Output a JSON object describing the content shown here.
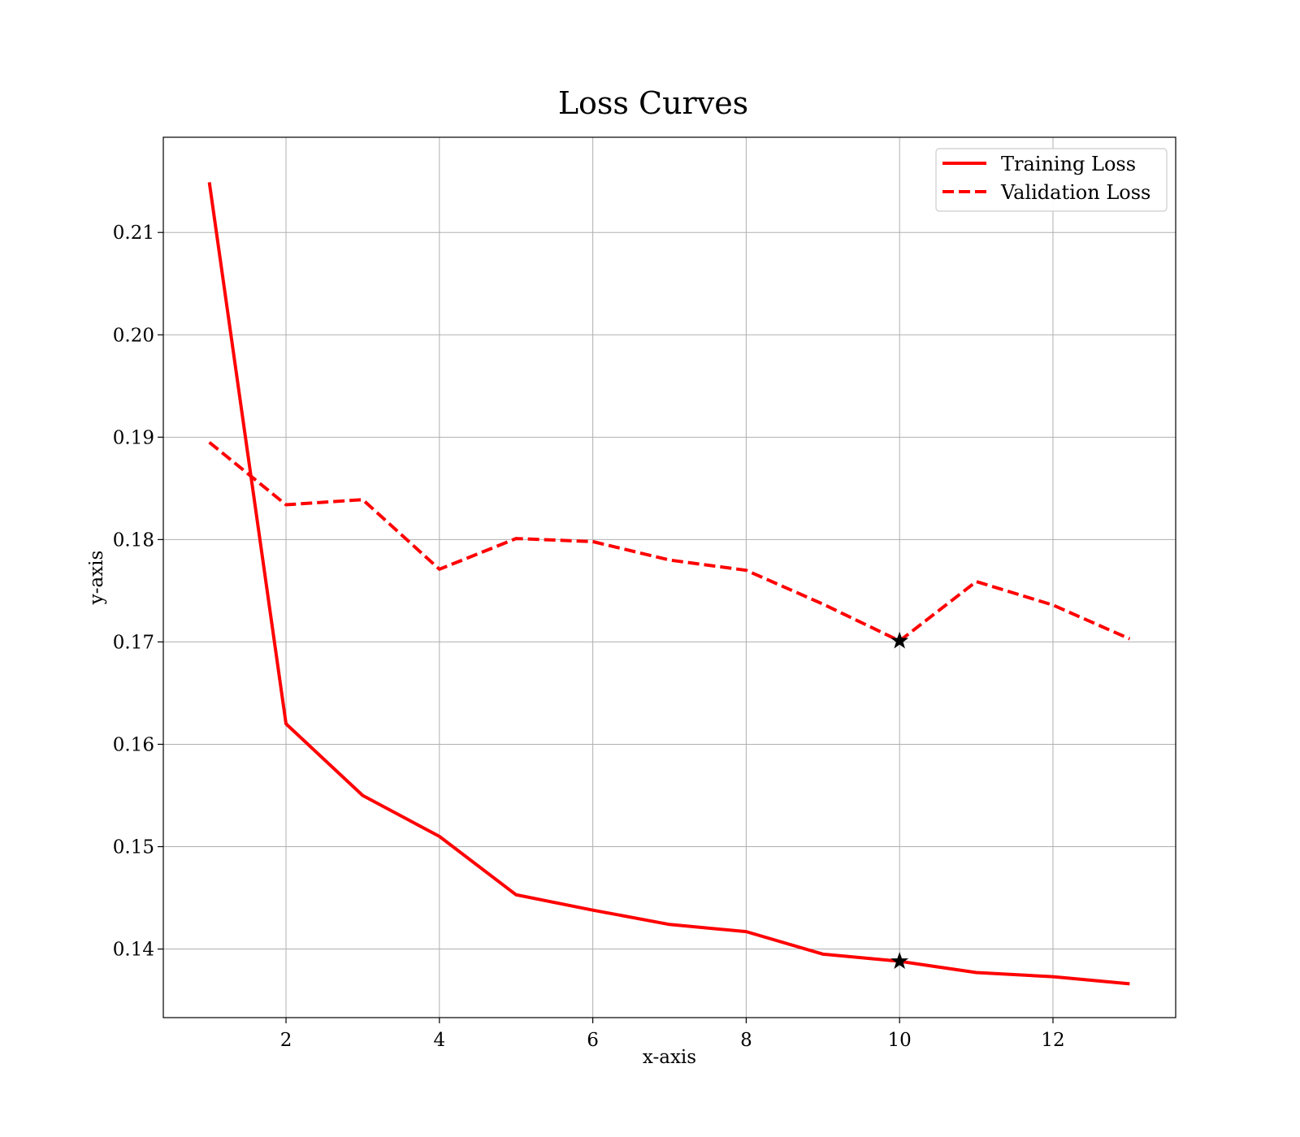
{
  "chart_data": {
    "type": "line",
    "title": "Loss Curves",
    "xlabel": "x-axis",
    "ylabel": "y-axis",
    "xlim": [
      0.4,
      13.6
    ],
    "ylim": [
      0.1333,
      0.2193
    ],
    "x_ticks": [
      2,
      4,
      6,
      8,
      10,
      12
    ],
    "y_ticks": [
      0.14,
      0.15,
      0.16,
      0.17,
      0.18,
      0.19,
      0.2,
      0.21
    ],
    "x_tick_labels": [
      "2",
      "4",
      "6",
      "8",
      "10",
      "12"
    ],
    "y_tick_labels": [
      "0.14",
      "0.15",
      "0.16",
      "0.17",
      "0.18",
      "0.19",
      "0.20",
      "0.21"
    ],
    "grid": true,
    "legend_position": "top-right",
    "x": [
      1,
      2,
      3,
      4,
      5,
      6,
      7,
      8,
      9,
      10,
      11,
      12,
      13
    ],
    "series": [
      {
        "name": "Training Loss",
        "style": "solid",
        "color": "#ff0000",
        "values": [
          0.2149,
          0.162,
          0.155,
          0.151,
          0.1453,
          0.1438,
          0.1424,
          0.1417,
          0.1395,
          0.1388,
          0.1377,
          0.1373,
          0.1366
        ]
      },
      {
        "name": "Validation Loss",
        "style": "dashed",
        "color": "#ff0000",
        "values": [
          0.1895,
          0.1834,
          0.1839,
          0.1771,
          0.1801,
          0.1798,
          0.178,
          0.177,
          0.1737,
          0.1701,
          0.1759,
          0.1736,
          0.1703
        ]
      }
    ],
    "markers": [
      {
        "series": "Training Loss",
        "x": 10,
        "y": 0.1388,
        "shape": "star",
        "color": "#000000"
      },
      {
        "series": "Validation Loss",
        "x": 10,
        "y": 0.1701,
        "shape": "star",
        "color": "#000000"
      }
    ]
  }
}
